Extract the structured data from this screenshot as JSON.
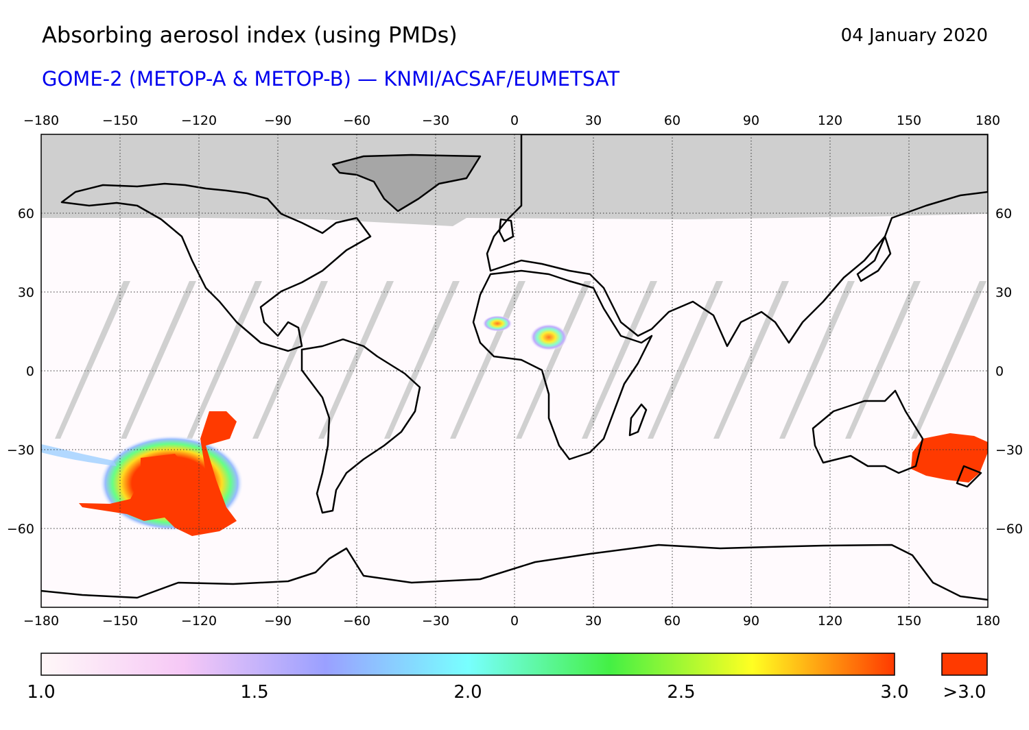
{
  "header": {
    "title": "Absorbing aerosol index (using PMDs)",
    "date": "04 January 2020",
    "subtitle": "GOME-2 (METOP-A & METOP-B) — KNMI/ACSAF/EUMETSAT"
  },
  "map": {
    "projection": "equirectangular",
    "lon_range": [
      -180,
      180
    ],
    "lat_range": [
      -90,
      90
    ],
    "lon_ticks": [
      "−180",
      "−150",
      "−120",
      "−90",
      "−60",
      "−30",
      "0",
      "30",
      "60",
      "90",
      "120",
      "150",
      "180"
    ],
    "lat_ticks": [
      "60",
      "30",
      "0",
      "−30",
      "−60"
    ],
    "grid": true,
    "no_data_color": "#cccccc",
    "land_no_data_color": "#a6a6a6",
    "aerosol_plumes": [
      {
        "region": "South Pacific (Australian bushfire smoke)",
        "lon": [
          -170,
          -105
        ],
        "lat": [
          -65,
          -15
        ],
        "value": ">3.0"
      },
      {
        "region": "Southeast Australia",
        "lon": [
          150,
          180
        ],
        "lat": [
          -42,
          -25
        ],
        "value": ">3.0"
      },
      {
        "region": "Sahara / Sahel",
        "lon": [
          -10,
          20
        ],
        "lat": [
          8,
          20
        ],
        "value": "1.5-3.0"
      }
    ]
  },
  "colorbar": {
    "tick_labels": [
      "1.0",
      "1.5",
      "2.0",
      "2.5",
      "3.0"
    ],
    "overflow_label": ">3.0",
    "stops": [
      "#fff8f8",
      "#f6c8f6",
      "#9aa0ff",
      "#78ffff",
      "#44f044",
      "#ffff22",
      "#ff3a00"
    ],
    "overflow_color": "#ff3a00"
  }
}
